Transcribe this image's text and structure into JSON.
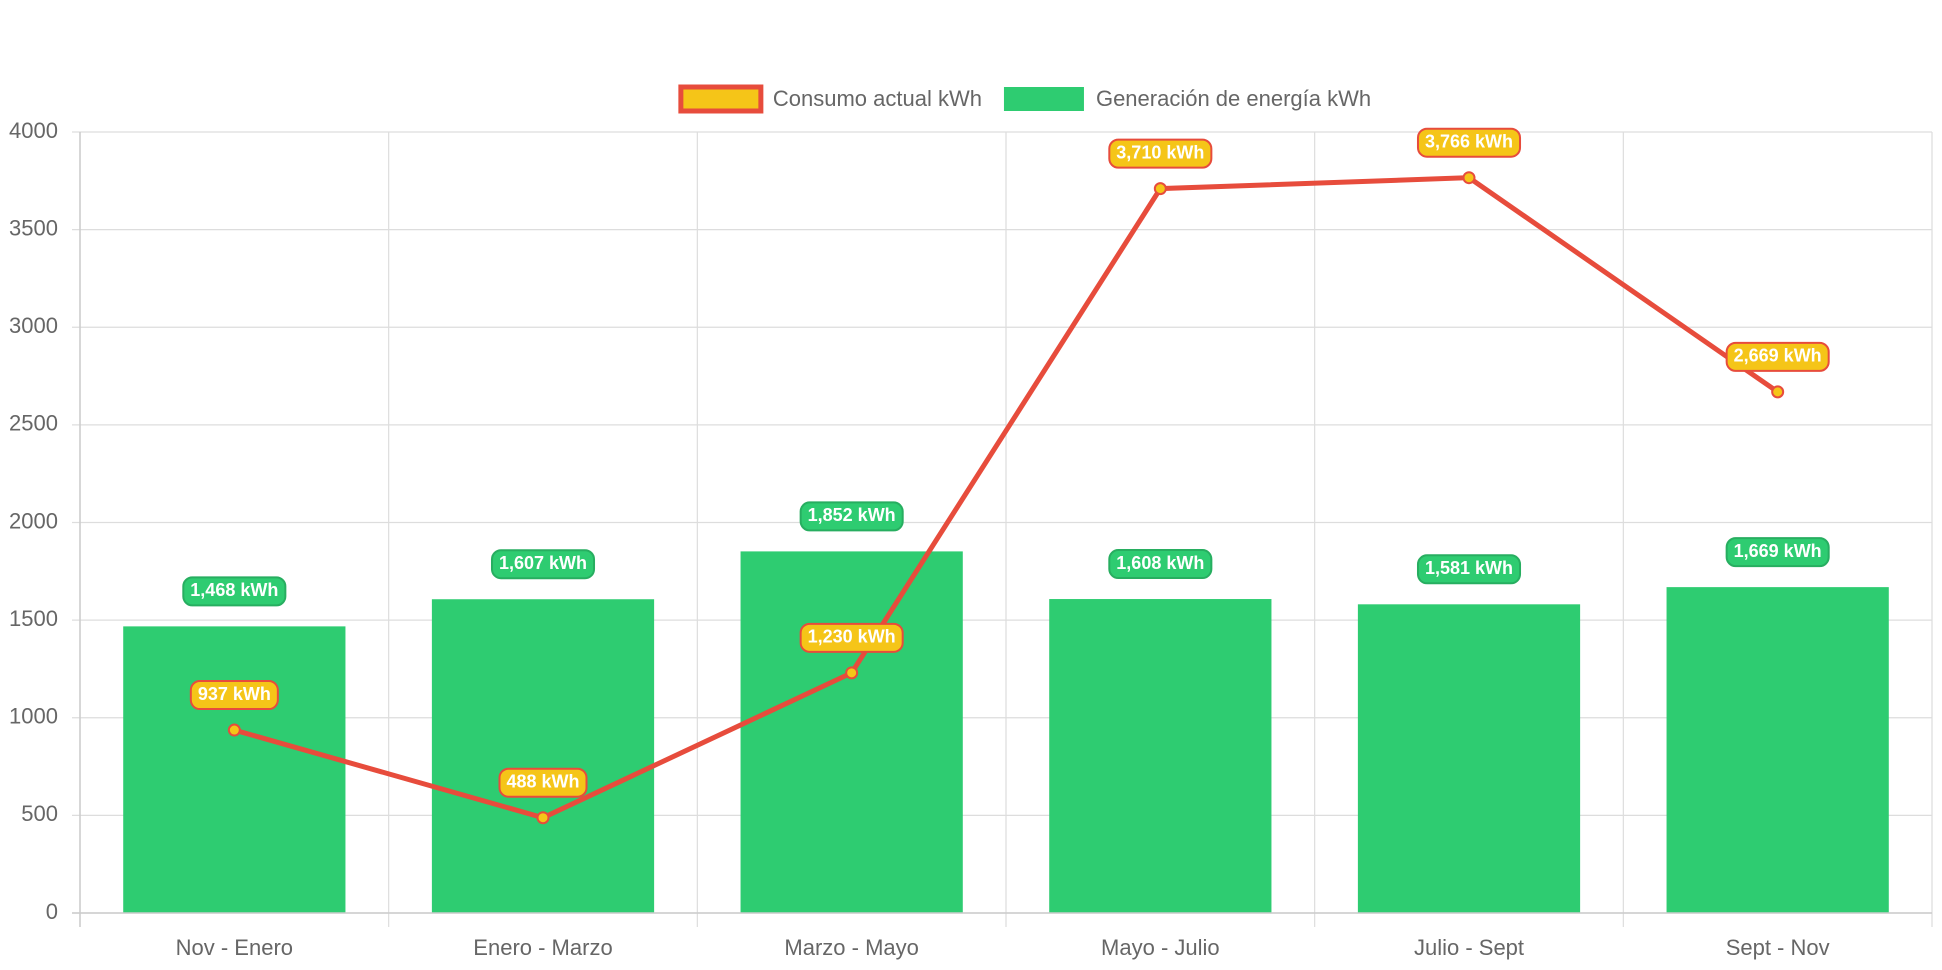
{
  "chart_data": {
    "type": "bar",
    "categories": [
      "Nov - Enero",
      "Enero - Marzo",
      "Marzo - Mayo",
      "Mayo - Julio",
      "Julio - Sept",
      "Sept - Nov"
    ],
    "series": [
      {
        "name": "Consumo actual kWh",
        "type": "line",
        "color": "#e74c3c",
        "point_color": "#f5c518",
        "values": [
          937,
          488,
          1230,
          3710,
          3766,
          2669
        ],
        "value_labels": [
          "937 kWh",
          "488 kWh",
          "1,230 kWh",
          "3,710 kWh",
          "3,766 kWh",
          "2,669 kWh"
        ]
      },
      {
        "name": "Generación de energía kWh",
        "type": "bar",
        "color": "#2ecc71",
        "values": [
          1468,
          1607,
          1852,
          1608,
          1581,
          1669
        ],
        "value_labels": [
          "1,468 kWh",
          "1,607 kWh",
          "1,852 kWh",
          "1,608 kWh",
          "1,581 kWh",
          "1,669 kWh"
        ]
      }
    ],
    "ylim": [
      0,
      4000
    ],
    "yticks": [
      0,
      500,
      1000,
      1500,
      2000,
      2500,
      3000,
      3500,
      4000
    ],
    "grid": true,
    "legend": "top"
  }
}
